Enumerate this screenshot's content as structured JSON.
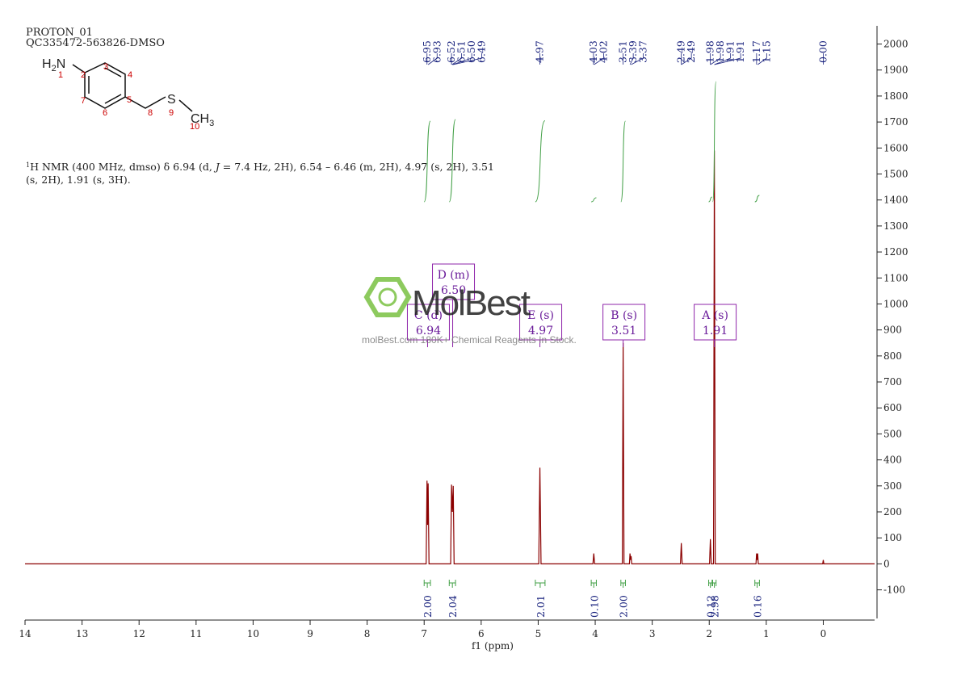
{
  "chart_data": {
    "type": "nmr",
    "title": [
      "PROTON_01",
      "QC335472-563826-DMSO"
    ],
    "structure": {
      "amine": [
        "H",
        "2",
        "N"
      ],
      "sulfur": "S",
      "methyl": [
        "CH",
        "3"
      ],
      "numbering": [
        "1",
        "2",
        "3",
        "4",
        "5",
        "6",
        "7",
        "8",
        "9",
        "10"
      ]
    },
    "description": [
      "1",
      "H NMR (400 MHz, dmso) δ 6.94 (d, ",
      "J",
      " = 7.4 Hz, 2H), 6.54 – 6.46 (m, 2H), 4.97 (s, 2H), 3.51",
      "(s, 2H), 1.91 (s, 3H)."
    ],
    "peak_labels": [
      "6.95",
      "6.93",
      "6.52",
      "6.51",
      "6.50",
      "6.49",
      "4.97",
      "4.03",
      "4.02",
      "3.51",
      "3.39",
      "3.37",
      "2.49",
      "2.49",
      "1.98",
      "1.98",
      "1.91",
      "1.91",
      "1.17",
      "1.15",
      "0.00"
    ],
    "multiplets": [
      {
        "label": "C (d)",
        "shift": "6.94"
      },
      {
        "label": "D (m)",
        "shift": "6.50"
      },
      {
        "label": "E (s)",
        "shift": "4.97"
      },
      {
        "label": "B (s)",
        "shift": "3.51"
      },
      {
        "label": "A (s)",
        "shift": "1.91"
      }
    ],
    "integrals": [
      {
        "value": 2.0,
        "label": "2.00",
        "from": 7.0,
        "to": 6.89
      },
      {
        "value": 2.04,
        "label": "2.04",
        "from": 6.56,
        "to": 6.45
      },
      {
        "value": 2.01,
        "label": "2.01",
        "from": 5.05,
        "to": 4.88
      },
      {
        "value": 0.1,
        "label": "0.10",
        "from": 4.07,
        "to": 3.98
      },
      {
        "value": 2.0,
        "label": "2.00",
        "from": 3.55,
        "to": 3.47
      },
      {
        "value": 0.12,
        "label": "0.12",
        "from": 2.01,
        "to": 1.95
      },
      {
        "value": 2.98,
        "label": "2.98",
        "from": 1.94,
        "to": 1.88
      },
      {
        "value": 0.16,
        "label": "0.16",
        "from": 1.2,
        "to": 1.12
      }
    ],
    "xlabel": "f1 (ppm)",
    "xlim": [
      14,
      -0.9
    ],
    "xticks": [
      14,
      13,
      12,
      11,
      10,
      9,
      8,
      7,
      6,
      5,
      4,
      3,
      2,
      1,
      0
    ],
    "ylim": [
      -210,
      2070
    ],
    "yticks": [
      -100,
      0,
      100,
      200,
      300,
      400,
      500,
      600,
      700,
      800,
      900,
      1000,
      1100,
      1200,
      1300,
      1400,
      1500,
      1600,
      1700,
      1800,
      1900,
      2000
    ],
    "series": [
      {
        "color": "#8b0000",
        "x": [
          14,
          6.965,
          6.95,
          6.94,
          6.93,
          6.915,
          6.535,
          6.52,
          6.505,
          6.49,
          6.475,
          4.99,
          4.97,
          4.95,
          4.04,
          4.025,
          4.01,
          3.525,
          3.51,
          3.495,
          3.4,
          3.39,
          3.38,
          3.37,
          3.36,
          2.505,
          2.49,
          2.475,
          1.995,
          1.98,
          1.965,
          1.925,
          1.91,
          1.895,
          1.18,
          1.17,
          1.16,
          1.15,
          1.14,
          0.01,
          0.0,
          -0.01,
          -0.9
        ],
        "values": [
          0,
          0,
          320,
          150,
          310,
          0,
          0,
          305,
          200,
          300,
          0,
          0,
          370,
          0,
          0,
          40,
          0,
          0,
          850,
          0,
          0,
          40,
          15,
          30,
          0,
          0,
          80,
          0,
          0,
          95,
          0,
          0,
          1590,
          0,
          0,
          40,
          15,
          40,
          0,
          0,
          15,
          0,
          0
        ]
      }
    ],
    "watermark": [
      "MolBest",
      "molBest.com 180K+ Chemical Reagents In Stock."
    ]
  }
}
